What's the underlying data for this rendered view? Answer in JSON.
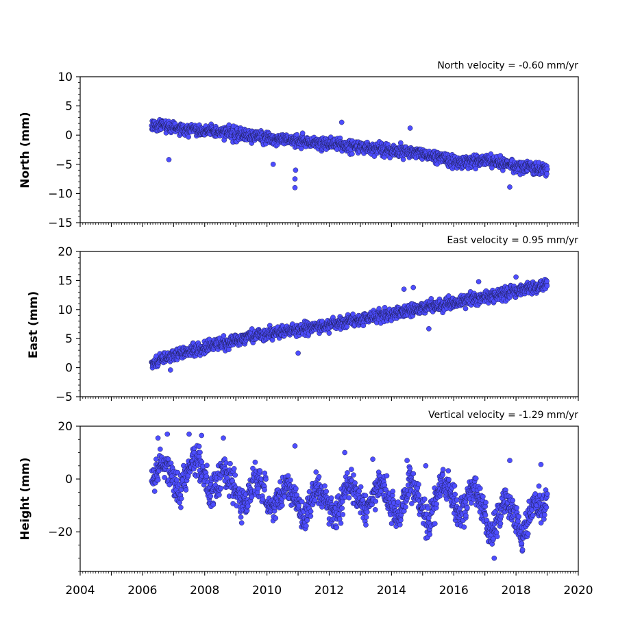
{
  "chart_data": [
    {
      "type": "scatter",
      "title": "North velocity = -0.60 mm/yr",
      "ylabel": "North (mm)",
      "xlabel": "",
      "xlim": [
        2004,
        2020
      ],
      "ylim": [
        -15,
        10
      ],
      "yticks": [
        10,
        5,
        0,
        -5,
        -10,
        -15
      ],
      "ytick_labels": [
        "10",
        "5",
        "0",
        "−5",
        "−10",
        "−15"
      ],
      "grid": false,
      "point_color": "#4d4dff",
      "series": [
        {
          "x": [
            2006.3,
            2006.6,
            2007.0,
            2007.5,
            2008.0,
            2008.5,
            2009.0,
            2009.5,
            2010.0,
            2010.5,
            2010.95,
            2011.5,
            2012.0,
            2012.5,
            2013.0,
            2013.5,
            2014.0,
            2014.5,
            2015.0,
            2015.5,
            2016.0,
            2016.5,
            2017.0,
            2017.5,
            2018.0,
            2018.5,
            2019.0
          ],
          "y": [
            1.5,
            1.8,
            1.2,
            1.0,
            0.8,
            0.5,
            0.2,
            -0.2,
            -0.5,
            -0.8,
            -1.0,
            -1.2,
            -1.5,
            -1.8,
            -2.0,
            -2.3,
            -2.6,
            -2.9,
            -3.3,
            -3.8,
            -4.5,
            -4.6,
            -4.2,
            -4.8,
            -5.4,
            -5.6,
            -5.9
          ]
        }
      ],
      "outliers": {
        "x": [
          2006.85,
          2010.2,
          2010.9,
          2010.9,
          2010.92,
          2012.4,
          2014.6,
          2017.8
        ],
        "y": [
          -4.2,
          -5.0,
          -7.5,
          -9.0,
          -6.0,
          2.2,
          1.2,
          -8.9
        ]
      }
    },
    {
      "type": "scatter",
      "title": "East velocity = 0.95 mm/yr",
      "ylabel": "East (mm)",
      "xlabel": "",
      "xlim": [
        2004,
        2020
      ],
      "ylim": [
        -5,
        20
      ],
      "yticks": [
        20,
        15,
        10,
        5,
        0,
        -5
      ],
      "ytick_labels": [
        "20",
        "15",
        "10",
        "5",
        "0",
        "−5"
      ],
      "grid": false,
      "point_color": "#4d4dff",
      "series": [
        {
          "x": [
            2006.3,
            2006.6,
            2007.0,
            2007.5,
            2008.0,
            2008.5,
            2009.0,
            2009.5,
            2010.0,
            2010.5,
            2011.0,
            2011.5,
            2012.0,
            2012.5,
            2013.0,
            2013.5,
            2014.0,
            2014.5,
            2015.0,
            2015.5,
            2016.0,
            2016.5,
            2017.0,
            2017.5,
            2018.0,
            2018.5,
            2019.0
          ],
          "y": [
            0.5,
            1.5,
            2.2,
            2.8,
            3.4,
            4.0,
            4.6,
            5.3,
            5.8,
            6.2,
            6.6,
            7.0,
            7.4,
            7.8,
            8.3,
            8.8,
            9.2,
            9.8,
            10.3,
            10.8,
            11.2,
            11.8,
            12.2,
            12.6,
            13.2,
            13.8,
            14.5
          ]
        }
      ],
      "outliers": {
        "x": [
          2006.9,
          2011.0,
          2014.4,
          2014.7,
          2015.2,
          2016.8,
          2018.0
        ],
        "y": [
          -0.4,
          2.5,
          13.5,
          13.8,
          6.7,
          14.8,
          15.6
        ]
      }
    },
    {
      "type": "scatter",
      "title": "Vertical velocity = -1.29 mm/yr",
      "ylabel": "Height (mm)",
      "xlabel": "",
      "xlim": [
        2004,
        2020
      ],
      "ylim": [
        -35,
        20
      ],
      "yticks": [
        20,
        0,
        -20
      ],
      "ytick_labels": [
        "20",
        "0",
        "−20"
      ],
      "xticks": [
        2004,
        2006,
        2008,
        2010,
        2012,
        2014,
        2016,
        2018,
        2020
      ],
      "xtick_labels": [
        "2004",
        "2006",
        "2008",
        "2010",
        "2012",
        "2014",
        "2016",
        "2018",
        "2020"
      ],
      "grid": false,
      "point_color": "#4d4dff",
      "series": [
        {
          "x": [
            2006.3,
            2006.6,
            2006.9,
            2007.2,
            2007.6,
            2007.9,
            2008.2,
            2008.6,
            2008.9,
            2009.2,
            2009.6,
            2009.9,
            2010.2,
            2010.6,
            2010.9,
            2011.2,
            2011.6,
            2011.9,
            2012.2,
            2012.6,
            2012.9,
            2013.2,
            2013.6,
            2013.9,
            2014.2,
            2014.6,
            2014.9,
            2015.2,
            2015.6,
            2015.9,
            2016.2,
            2016.6,
            2016.9,
            2017.2,
            2017.6,
            2017.9,
            2018.2,
            2018.6,
            2018.9,
            2019.0
          ],
          "y": [
            0.0,
            5.0,
            2.0,
            -6.0,
            8.0,
            4.0,
            -6.0,
            3.0,
            -1.0,
            -12.0,
            0.0,
            -4.0,
            -12.0,
            -2.0,
            -8.0,
            -16.0,
            -3.0,
            -8.0,
            -15.0,
            -1.0,
            -6.0,
            -13.0,
            -1.0,
            -7.0,
            -16.0,
            -2.0,
            -8.0,
            -18.0,
            0.0,
            -5.0,
            -14.0,
            -4.0,
            -10.0,
            -22.0,
            -8.0,
            -12.0,
            -22.0,
            -9.0,
            -12.0,
            -8.0
          ]
        }
      ],
      "outliers": {
        "x": [
          2006.5,
          2006.8,
          2007.5,
          2007.9,
          2008.6,
          2010.9,
          2012.5,
          2013.4,
          2014.5,
          2015.1,
          2017.3,
          2017.8,
          2018.8
        ],
        "y": [
          15.5,
          17.0,
          17.0,
          16.5,
          15.5,
          12.5,
          10.0,
          7.5,
          7.0,
          5.0,
          -30.0,
          7.0,
          5.5
        ]
      }
    }
  ]
}
